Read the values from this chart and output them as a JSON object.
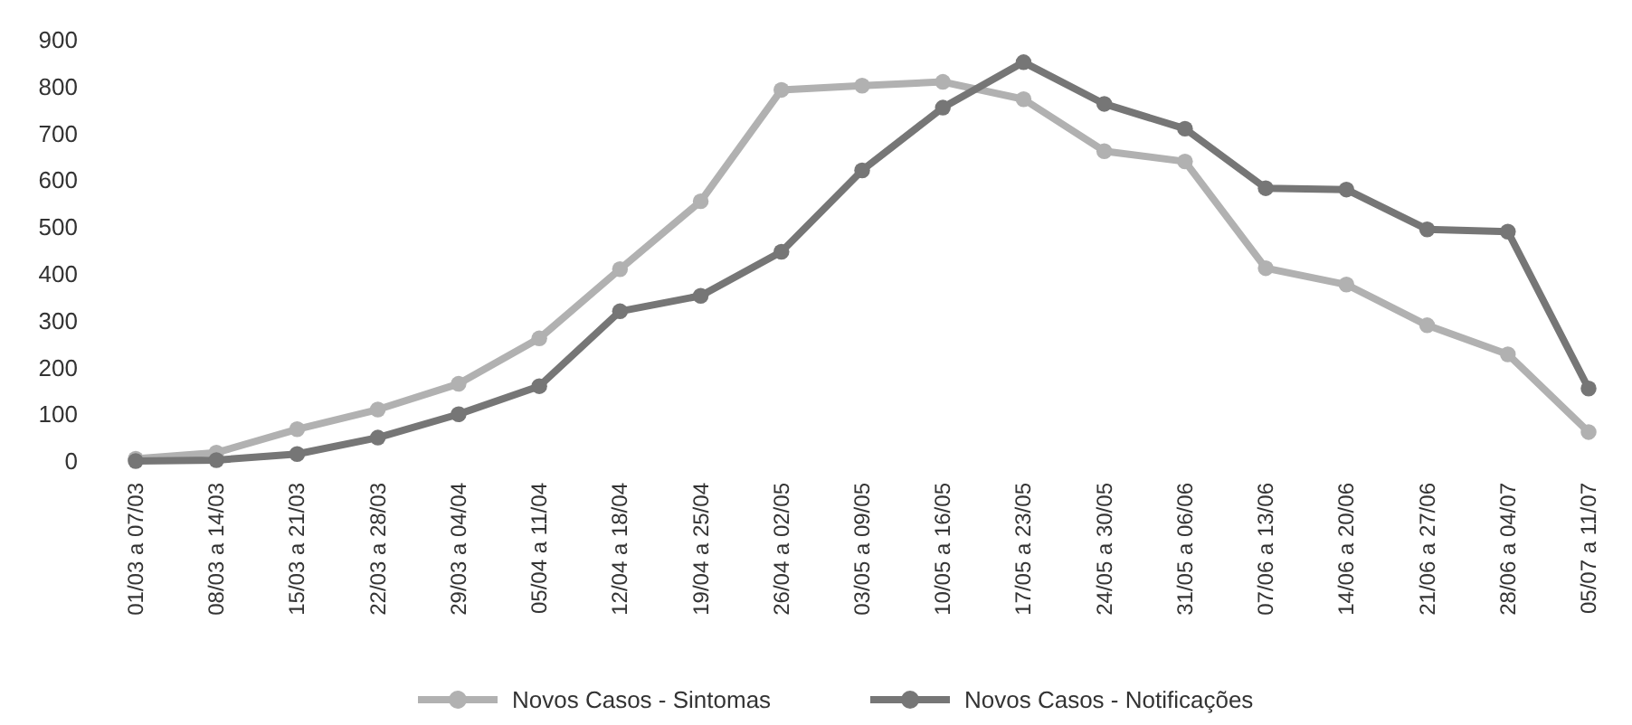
{
  "chart_data": {
    "type": "line",
    "categories": [
      "01/03 a 07/03",
      "08/03 a 14/03",
      "15/03 a 21/03",
      "22/03 a 28/03",
      "29/03 a 04/04",
      "05/04 a 11/04",
      "12/04 a 18/04",
      "19/04 a 25/04",
      "26/04 a 02/05",
      "03/05 a 09/05",
      "10/05 a 16/05",
      "17/05 a 23/05",
      "24/05 a 30/05",
      "31/05 a 06/06",
      "07/06 a 13/06",
      "14/06 a 20/06",
      "21/06 a 27/06",
      "28/06 a 04/07",
      "05/07 a 11/07"
    ],
    "series": [
      {
        "name": "Novos Casos - Sintomas",
        "color": "#b1b1b1",
        "values": [
          5,
          18,
          68,
          110,
          165,
          262,
          410,
          555,
          793,
          802,
          810,
          773,
          662,
          640,
          412,
          377,
          290,
          228,
          62
        ]
      },
      {
        "name": "Novos Casos - Notificações",
        "color": "#767676",
        "values": [
          0,
          2,
          15,
          50,
          100,
          160,
          320,
          353,
          447,
          621,
          755,
          852,
          763,
          710,
          583,
          580,
          495,
          490,
          155
        ]
      }
    ],
    "ylim": [
      0,
      900
    ],
    "yticks": [
      0,
      100,
      200,
      300,
      400,
      500,
      600,
      700,
      800,
      900
    ],
    "grid": false,
    "legend": "bottom",
    "marker": "circle",
    "line_style": "solid"
  }
}
